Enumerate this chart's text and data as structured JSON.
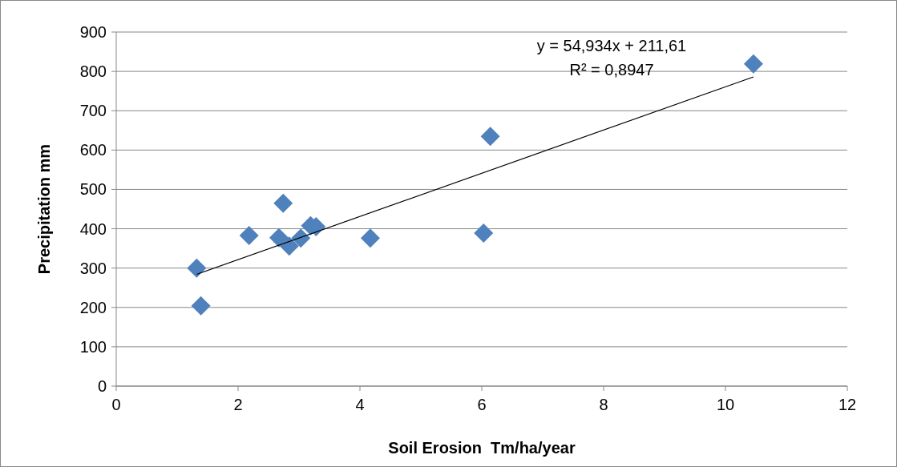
{
  "chart_data": {
    "type": "scatter",
    "xlabel": "Soil Erosion  Tm/ha/year",
    "ylabel": "Precipitation mm",
    "xlim": [
      0,
      12
    ],
    "xticks": [
      0,
      2,
      4,
      6,
      8,
      10,
      12
    ],
    "ylim": [
      0,
      900
    ],
    "yticks": [
      0,
      100,
      200,
      300,
      400,
      500,
      600,
      700,
      800,
      900
    ],
    "grid": "y",
    "series": [
      {
        "color": "#4f81bd",
        "marker": "diamond",
        "x": [
          1.32,
          1.39,
          2.18,
          2.67,
          2.74,
          2.84,
          3.03,
          3.19,
          3.28,
          4.17,
          6.03,
          6.14,
          10.46
        ],
        "values": [
          300,
          204,
          383,
          377,
          465,
          356,
          376,
          408,
          405,
          376,
          389,
          635,
          819
        ]
      },
      {
        "type": "line",
        "color": "#000000",
        "x": [
          1.32,
          10.46
        ],
        "values": [
          284,
          786
        ]
      }
    ],
    "annotations": [
      "y = 54,934x + 211,61",
      "R² = 0,8947"
    ]
  }
}
